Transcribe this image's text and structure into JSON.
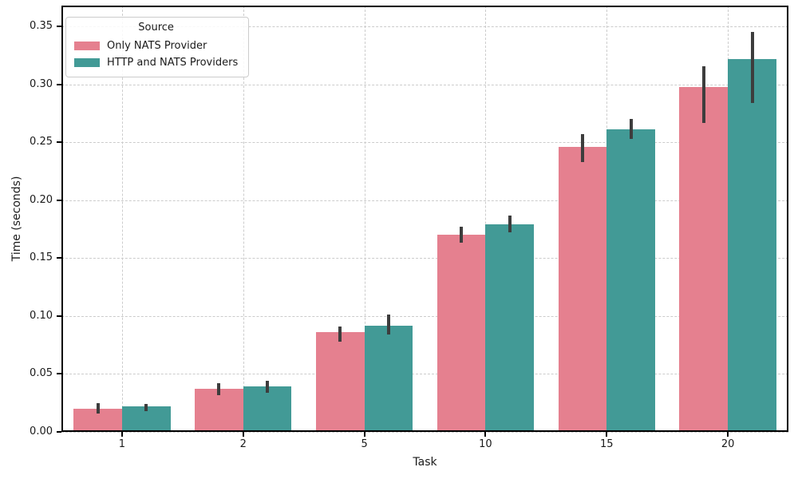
{
  "chart_data": {
    "type": "bar",
    "title": "",
    "xlabel": "Task",
    "ylabel": "Time (seconds)",
    "categories": [
      "1",
      "2",
      "5",
      "10",
      "15",
      "20"
    ],
    "series": [
      {
        "name": "Only NATS Provider",
        "color": "#e5808f",
        "values": [
          0.02,
          0.037,
          0.086,
          0.17,
          0.246,
          0.298
        ],
        "errors_low": [
          0.016,
          0.032,
          0.078,
          0.163,
          0.233,
          0.267
        ],
        "errors_high": [
          0.025,
          0.042,
          0.091,
          0.177,
          0.257,
          0.316
        ]
      },
      {
        "name": "HTTP and NATS Providers",
        "color": "#429a96",
        "values": [
          0.022,
          0.039,
          0.092,
          0.179,
          0.261,
          0.322
        ],
        "errors_low": [
          0.018,
          0.034,
          0.084,
          0.172,
          0.253,
          0.284
        ],
        "errors_high": [
          0.024,
          0.044,
          0.101,
          0.187,
          0.27,
          0.345
        ]
      }
    ],
    "ylim": [
      0,
      0.368
    ],
    "yticks": [
      "0.00",
      "0.05",
      "0.10",
      "0.15",
      "0.20",
      "0.25",
      "0.30",
      "0.35"
    ],
    "legend": {
      "title": "Source",
      "position": "upper left"
    },
    "grid": {
      "style": "dashed",
      "color": "#cccccc",
      "horizontal": true,
      "vertical": true
    },
    "error_bar_color": "#3d3d3d",
    "bar_group_width_fraction": 0.8
  }
}
